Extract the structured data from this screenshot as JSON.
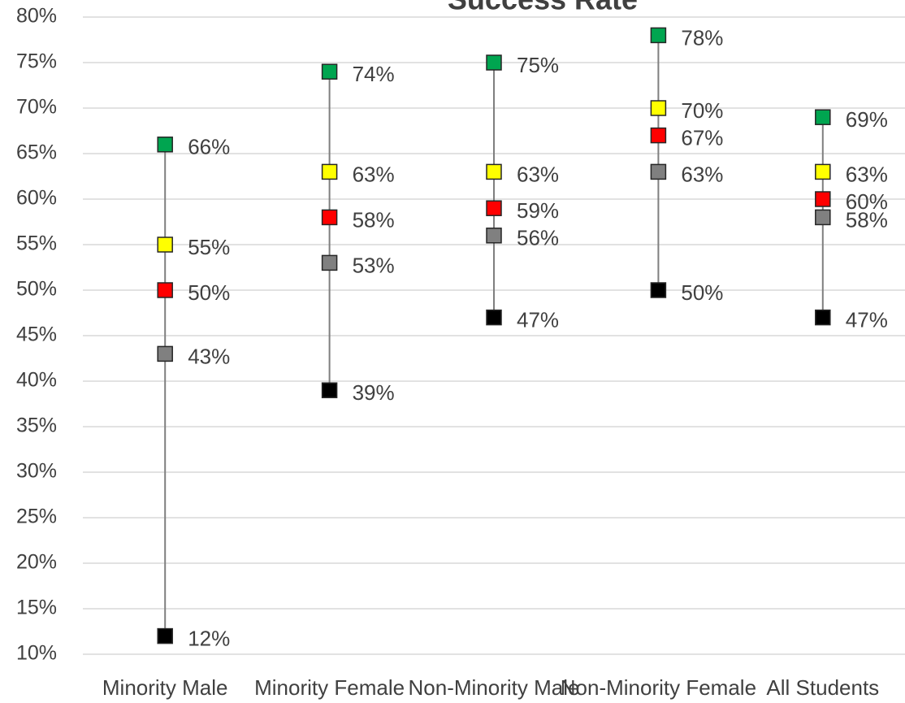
{
  "chart_data": {
    "type": "dot",
    "title": "Success Rate",
    "categories": [
      "Minority Male",
      "Minority Female",
      "Non-Minority Male",
      "Non-Minority Female",
      "All Students"
    ],
    "series": [
      {
        "color": "#00a550",
        "values": [
          66,
          74,
          75,
          78,
          69
        ],
        "value_labels": [
          "66%",
          "74%",
          "75%",
          "78%",
          "69%"
        ]
      },
      {
        "color": "#ffff00",
        "values": [
          55,
          63,
          63,
          70,
          63
        ],
        "value_labels": [
          "55%",
          "63%",
          "63%",
          "70%",
          "63%"
        ]
      },
      {
        "color": "#ff0000",
        "values": [
          50,
          58,
          59,
          67,
          60
        ],
        "value_labels": [
          "50%",
          "58%",
          "59%",
          "67%",
          "60%"
        ]
      },
      {
        "color": "#808080",
        "values": [
          43,
          53,
          56,
          63,
          58
        ],
        "value_labels": [
          "43%",
          "53%",
          "56%",
          "63%",
          "58%"
        ]
      },
      {
        "color": "#000000",
        "values": [
          12,
          39,
          47,
          50,
          47
        ],
        "value_labels": [
          "12%",
          "39%",
          "47%",
          "50%",
          "47%"
        ]
      }
    ],
    "ylim": [
      10,
      80
    ],
    "yticks": [
      {
        "value": 10,
        "label": "10%"
      },
      {
        "value": 15,
        "label": "15%"
      },
      {
        "value": 20,
        "label": "20%"
      },
      {
        "value": 25,
        "label": "25%"
      },
      {
        "value": 30,
        "label": "30%"
      },
      {
        "value": 35,
        "label": "35%"
      },
      {
        "value": 40,
        "label": "40%"
      },
      {
        "value": 45,
        "label": "45%"
      },
      {
        "value": 50,
        "label": "50%"
      },
      {
        "value": 55,
        "label": "55%"
      },
      {
        "value": 60,
        "label": "60%"
      },
      {
        "value": 65,
        "label": "65%"
      },
      {
        "value": 70,
        "label": "70%"
      },
      {
        "value": 75,
        "label": "75%"
      },
      {
        "value": 80,
        "label": "80%"
      }
    ],
    "grid": true,
    "high_low_lines": true
  }
}
